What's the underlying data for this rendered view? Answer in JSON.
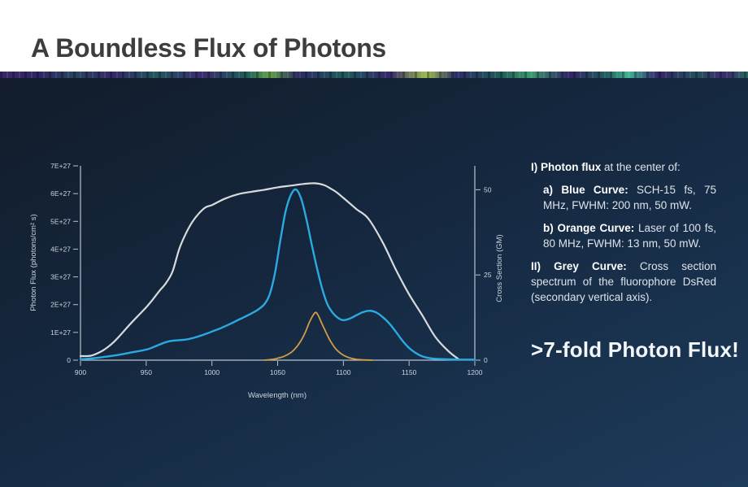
{
  "header": {
    "title": "A Boundless Flux of Photons"
  },
  "notes": {
    "items": [
      {
        "prefix": "I) Photon flux",
        "text": " at the center of:"
      },
      {
        "prefix": "a) Blue Curve:",
        "text": " SCH-15 fs, 75 MHz, FWHM: 200 nm, 50 mW."
      },
      {
        "prefix": "b) Orange Curve:",
        "text": " Laser of 100 fs, 80 MHz, FWHM: 13 nm, 50 mW."
      },
      {
        "prefix": "II) Grey Curve:",
        "text": " Cross section spectrum of the fluorophore DsRed (secondary vertical axis)."
      }
    ],
    "highlight": ">7-fold Photon Flux!"
  },
  "colors": {
    "panel_top": "#121c2a",
    "panel_bottom": "#1d3b5a",
    "blue_curve": "#2ba9e1",
    "orange_curve": "#d29b4a",
    "grey_curve": "#d8dbde",
    "axis": "#b9c3ce",
    "tick_text": "#ccd5de",
    "title_text": "#3d3d3d"
  },
  "chart_data": {
    "type": "line",
    "xlabel": "Wavelength (nm)",
    "ylabel_left": "Photon Flux (photons/cm² s)",
    "ylabel_right": "Cross Section (GM)",
    "x_range": [
      900,
      1200
    ],
    "x_ticks": [
      900,
      950,
      1000,
      1050,
      1100,
      1150,
      1200
    ],
    "left_axis": {
      "ticks": [
        "0",
        "1E+27",
        "2E+27",
        "3E+27",
        "4E+27",
        "5E+27",
        "6E+27",
        "7E+27"
      ],
      "max": 7,
      "units": "1E+27 photons/cm² s"
    },
    "right_axis": {
      "ticks": [
        0,
        25,
        50
      ],
      "max": 57
    },
    "grid": false,
    "legend": false,
    "series": [
      {
        "name": "DsRed cross section spectrum (grey, right axis, GM)",
        "axis": "right",
        "color": "#d8dbde",
        "width": 2.2,
        "points": [
          [
            900,
            1.2
          ],
          [
            908,
            1.3
          ],
          [
            915,
            2.4
          ],
          [
            920,
            3.6
          ],
          [
            925,
            5.2
          ],
          [
            930,
            7.2
          ],
          [
            935,
            9.4
          ],
          [
            940,
            11.5
          ],
          [
            945,
            13.5
          ],
          [
            950,
            15.5
          ],
          [
            955,
            17.8
          ],
          [
            960,
            20.3
          ],
          [
            965,
            22.6
          ],
          [
            970,
            26
          ],
          [
            975,
            32.5
          ],
          [
            980,
            37
          ],
          [
            985,
            40.5
          ],
          [
            990,
            43
          ],
          [
            995,
            44.8
          ],
          [
            1000,
            45.5
          ],
          [
            1010,
            47.4
          ],
          [
            1020,
            48.7
          ],
          [
            1030,
            49.4
          ],
          [
            1040,
            50
          ],
          [
            1050,
            50.7
          ],
          [
            1060,
            51.2
          ],
          [
            1070,
            51.7
          ],
          [
            1078,
            51.9
          ],
          [
            1085,
            51.4
          ],
          [
            1090,
            50.4
          ],
          [
            1095,
            49.2
          ],
          [
            1100,
            47.6
          ],
          [
            1110,
            44.3
          ],
          [
            1119,
            41.5
          ],
          [
            1130,
            34.5
          ],
          [
            1140,
            26.5
          ],
          [
            1150,
            19.3
          ],
          [
            1160,
            13.2
          ],
          [
            1170,
            6.8
          ],
          [
            1180,
            2.6
          ],
          [
            1188,
            0.2
          ]
        ]
      },
      {
        "name": "Photon flux SCH-15 fs (blue, left axis, 1E+27 photons/cm² s)",
        "axis": "left",
        "color": "#2ba9e1",
        "width": 2.4,
        "points": [
          [
            900,
            0.03
          ],
          [
            910,
            0.07
          ],
          [
            920,
            0.13
          ],
          [
            930,
            0.2
          ],
          [
            940,
            0.29
          ],
          [
            950,
            0.38
          ],
          [
            955,
            0.46
          ],
          [
            960,
            0.56
          ],
          [
            965,
            0.65
          ],
          [
            970,
            0.7
          ],
          [
            975,
            0.72
          ],
          [
            980,
            0.74
          ],
          [
            985,
            0.79
          ],
          [
            990,
            0.86
          ],
          [
            995,
            0.94
          ],
          [
            1000,
            1.03
          ],
          [
            1005,
            1.12
          ],
          [
            1010,
            1.22
          ],
          [
            1015,
            1.33
          ],
          [
            1020,
            1.45
          ],
          [
            1025,
            1.56
          ],
          [
            1030,
            1.68
          ],
          [
            1035,
            1.82
          ],
          [
            1040,
            2.02
          ],
          [
            1044,
            2.38
          ],
          [
            1048,
            3.15
          ],
          [
            1052,
            4.3
          ],
          [
            1056,
            5.35
          ],
          [
            1060,
            5.95
          ],
          [
            1064,
            6.15
          ],
          [
            1068,
            5.8
          ],
          [
            1072,
            5.05
          ],
          [
            1076,
            4.15
          ],
          [
            1080,
            3.3
          ],
          [
            1084,
            2.55
          ],
          [
            1088,
            2.0
          ],
          [
            1092,
            1.7
          ],
          [
            1096,
            1.52
          ],
          [
            1100,
            1.44
          ],
          [
            1105,
            1.5
          ],
          [
            1110,
            1.62
          ],
          [
            1115,
            1.73
          ],
          [
            1120,
            1.78
          ],
          [
            1125,
            1.72
          ],
          [
            1130,
            1.55
          ],
          [
            1135,
            1.32
          ],
          [
            1140,
            1.02
          ],
          [
            1145,
            0.7
          ],
          [
            1150,
            0.44
          ],
          [
            1155,
            0.26
          ],
          [
            1160,
            0.14
          ],
          [
            1165,
            0.08
          ],
          [
            1170,
            0.05
          ],
          [
            1180,
            0.03
          ],
          [
            1190,
            0.02
          ],
          [
            1200,
            0.02
          ]
        ]
      },
      {
        "name": "Photon flux 100 fs laser (orange, left axis, 1E+27 photons/cm² s)",
        "axis": "left",
        "color": "#d29b4a",
        "width": 1.8,
        "points": [
          [
            1040,
            0.0
          ],
          [
            1046,
            0.03
          ],
          [
            1050,
            0.07
          ],
          [
            1055,
            0.14
          ],
          [
            1060,
            0.27
          ],
          [
            1064,
            0.45
          ],
          [
            1068,
            0.72
          ],
          [
            1071,
            1.0
          ],
          [
            1074,
            1.35
          ],
          [
            1077,
            1.62
          ],
          [
            1079,
            1.72
          ],
          [
            1081,
            1.6
          ],
          [
            1084,
            1.28
          ],
          [
            1087,
            0.98
          ],
          [
            1090,
            0.7
          ],
          [
            1093,
            0.48
          ],
          [
            1096,
            0.32
          ],
          [
            1100,
            0.18
          ],
          [
            1105,
            0.08
          ],
          [
            1110,
            0.03
          ],
          [
            1116,
            0.01
          ],
          [
            1122,
            0.0
          ]
        ]
      }
    ]
  }
}
